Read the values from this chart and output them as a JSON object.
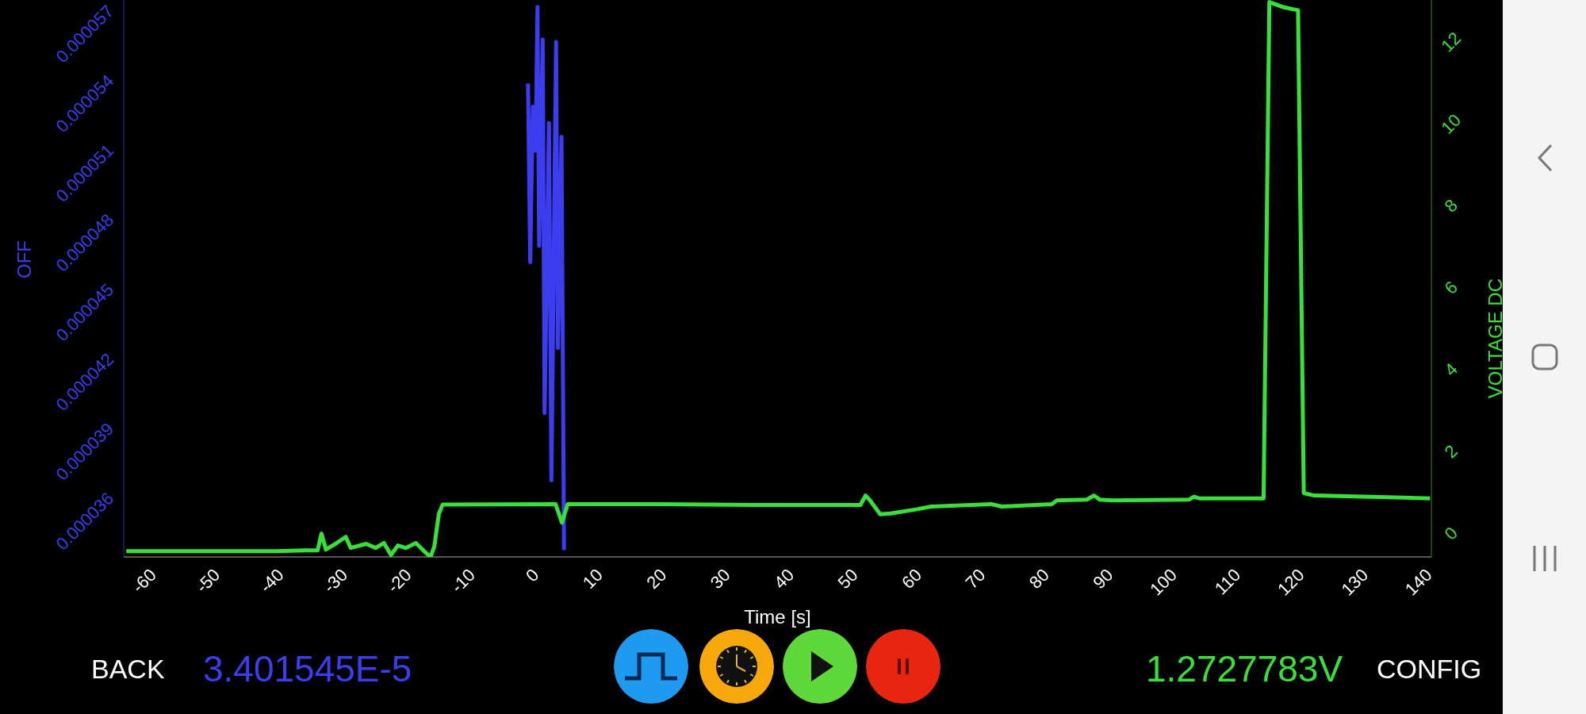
{
  "chart_data": {
    "type": "line",
    "xlabel": "Time [s]",
    "ylabel": "OFF",
    "y2label": "VOLTAGE DC",
    "xlim": [
      -64,
      141
    ],
    "xticks": [
      -60,
      -50,
      -40,
      -30,
      -20,
      -10,
      0,
      10,
      20,
      30,
      40,
      50,
      60,
      70,
      80,
      90,
      100,
      110,
      120,
      130,
      140
    ],
    "ylim": [
      3.45e-05,
      5.85e-05
    ],
    "yticks": [
      {
        "value": 3.6e-05,
        "label": "0.000036"
      },
      {
        "value": 3.9e-05,
        "label": "0.000039"
      },
      {
        "value": 4.2e-05,
        "label": "0.000042"
      },
      {
        "value": 4.5e-05,
        "label": "0.000045"
      },
      {
        "value": 4.8e-05,
        "label": "0.000048"
      },
      {
        "value": 5.1e-05,
        "label": "0.000051"
      },
      {
        "value": 5.4e-05,
        "label": "0.000054"
      },
      {
        "value": 5.7e-05,
        "label": "0.000057"
      }
    ],
    "y2lim": [
      -0.55,
      13.05
    ],
    "y2ticks": [
      0,
      2,
      4,
      6,
      8,
      10,
      12
    ],
    "grid": false,
    "line_style": "solid",
    "marker": "none",
    "series": [
      {
        "color": "#3d3df0",
        "x": [
          -0.62,
          -0.27,
          0.13,
          0.57,
          0.87,
          1.12,
          1.69,
          1.98,
          2.67,
          3.05,
          3.78,
          4.07,
          4.63,
          5.03
        ],
        "values": [
          5.49e-05,
          4.72e-05,
          5.39e-05,
          5.2e-05,
          5.82e-05,
          4.79e-05,
          5.68e-05,
          4.07e-05,
          5.32e-05,
          3.78e-05,
          5.67e-05,
          4.35e-05,
          5.26e-05,
          3.48e-05
        ]
      },
      {
        "color": "#3ae03a",
        "axis": "y2",
        "x": [
          -63.6,
          -40,
          -35.5,
          -33.6,
          -33,
          -32.3,
          -30.8,
          -29.2,
          -28.4,
          -26,
          -24.5,
          -23.2,
          -22.1,
          -21,
          -19.8,
          -18.2,
          -16.9,
          -15.9,
          -15.3,
          -14.6,
          -14,
          3.7,
          4.7,
          5.6,
          20,
          35,
          51.5,
          52.3,
          53,
          54.6,
          56.2,
          60.2,
          62.6,
          72,
          73.6,
          81.5,
          82.3,
          87,
          88.1,
          89,
          91,
          103,
          103.8,
          104.6,
          114.7,
          115.6,
          117.9,
          120.1,
          121,
          122.6,
          140.8
        ],
        "values": [
          -0.41,
          -0.41,
          -0.39,
          -0.39,
          0.02,
          -0.37,
          -0.23,
          -0.06,
          -0.33,
          -0.23,
          -0.33,
          -0.21,
          -0.5,
          -0.27,
          -0.33,
          -0.21,
          -0.41,
          -0.55,
          -0.29,
          0.5,
          0.73,
          0.74,
          0.29,
          0.74,
          0.74,
          0.72,
          0.72,
          0.95,
          0.83,
          0.49,
          0.51,
          0.61,
          0.68,
          0.74,
          0.68,
          0.74,
          0.83,
          0.85,
          0.95,
          0.85,
          0.83,
          0.85,
          0.92,
          0.88,
          0.88,
          13.0,
          12.87,
          12.8,
          1.01,
          0.95,
          0.88
        ]
      }
    ],
    "annotations": [
      "BACK",
      "3.401545E-5",
      "1.2727783V",
      "CONFIG"
    ]
  }
}
